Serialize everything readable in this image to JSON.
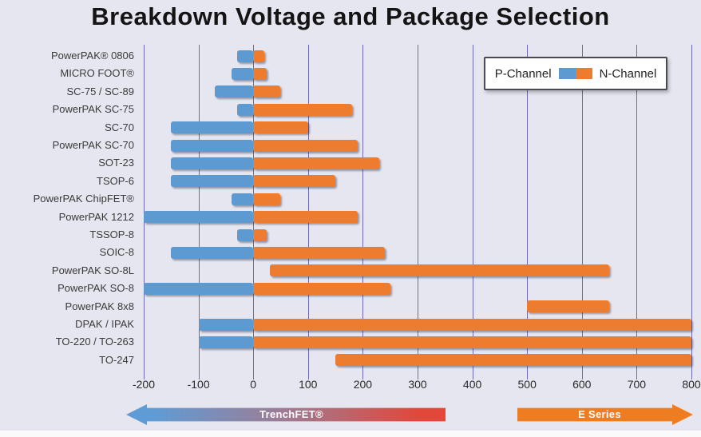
{
  "title": "Breakdown Voltage and Package Selection",
  "legend": {
    "p_label": "P-Channel",
    "n_label": "N-Channel"
  },
  "footer": {
    "trenchfet_label": "TrenchFET®",
    "eseries_label": "E Series"
  },
  "colors": {
    "p_channel": "#5d9ad2",
    "n_channel": "#ed7c2f",
    "background": "#e6e6f0",
    "gridline": "#6b6bad",
    "arrow_left_start": "#5f9cd6",
    "arrow_left_end": "#e2473a",
    "arrow_right": "#ee7d22"
  },
  "chart_data": {
    "type": "bar",
    "orientation": "horizontal",
    "title": "Breakdown Voltage and Package Selection",
    "xlim": [
      -200,
      800
    ],
    "x_ticks": [
      -200,
      -100,
      0,
      100,
      200,
      300,
      400,
      500,
      600,
      700,
      800
    ],
    "grid": true,
    "legend_position": "top-right",
    "series_names": [
      "P-Channel",
      "N-Channel"
    ],
    "rows": [
      {
        "label": "PowerPAK® 0806",
        "p": [
          -30,
          0
        ],
        "n": [
          0,
          20
        ]
      },
      {
        "label": "MICRO FOOT®",
        "p": [
          -40,
          0
        ],
        "n": [
          0,
          25
        ]
      },
      {
        "label": "SC-75 / SC-89",
        "p": [
          -70,
          0
        ],
        "n": [
          0,
          50
        ]
      },
      {
        "label": "PowerPAK SC-75",
        "p": [
          -30,
          0
        ],
        "n": [
          0,
          180
        ]
      },
      {
        "label": "SC-70",
        "p": [
          -150,
          0
        ],
        "n": [
          0,
          100
        ]
      },
      {
        "label": "PowerPAK SC-70",
        "p": [
          -150,
          0
        ],
        "n": [
          0,
          190
        ]
      },
      {
        "label": "SOT-23",
        "p": [
          -150,
          0
        ],
        "n": [
          0,
          230
        ]
      },
      {
        "label": "TSOP-6",
        "p": [
          -150,
          0
        ],
        "n": [
          0,
          150
        ]
      },
      {
        "label": "PowerPAK ChipFET®",
        "p": [
          -40,
          0
        ],
        "n": [
          0,
          50
        ]
      },
      {
        "label": "PowerPAK 1212",
        "p": [
          -200,
          0
        ],
        "n": [
          0,
          190
        ]
      },
      {
        "label": "TSSOP-8",
        "p": [
          -30,
          0
        ],
        "n": [
          0,
          25
        ]
      },
      {
        "label": "SOIC-8",
        "p": [
          -150,
          0
        ],
        "n": [
          0,
          240
        ]
      },
      {
        "label": "PowerPAK SO-8L",
        "p": null,
        "n": [
          30,
          650
        ]
      },
      {
        "label": "PowerPAK SO-8",
        "p": [
          -200,
          0
        ],
        "n": [
          0,
          250
        ]
      },
      {
        "label": "PowerPAK 8x8",
        "p": null,
        "n": [
          500,
          650
        ]
      },
      {
        "label": "DPAK / IPAK",
        "p": [
          -100,
          0
        ],
        "n": [
          0,
          800
        ]
      },
      {
        "label": "TO-220 / TO-263",
        "p": [
          -100,
          0
        ],
        "n": [
          0,
          800
        ]
      },
      {
        "label": "TO-247",
        "p": null,
        "n": [
          150,
          800
        ]
      }
    ]
  }
}
